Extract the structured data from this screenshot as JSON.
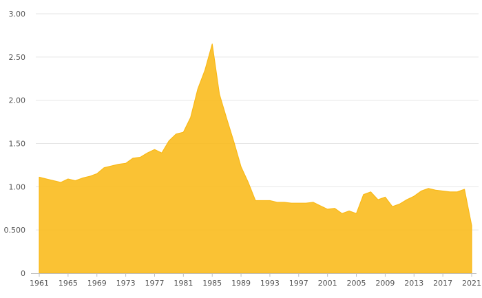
{
  "chart_data": {
    "type": "area",
    "title": "",
    "xlabel": "",
    "ylabel": "",
    "x": [
      1961,
      1962,
      1963,
      1964,
      1965,
      1966,
      1967,
      1968,
      1969,
      1970,
      1971,
      1972,
      1973,
      1974,
      1975,
      1976,
      1977,
      1978,
      1979,
      1980,
      1981,
      1982,
      1983,
      1984,
      1985,
      1986,
      1987,
      1988,
      1989,
      1990,
      1991,
      1992,
      1993,
      1994,
      1995,
      1996,
      1997,
      1998,
      1999,
      2000,
      2001,
      2002,
      2003,
      2004,
      2005,
      2006,
      2007,
      2008,
      2009,
      2010,
      2011,
      2012,
      2013,
      2014,
      2015,
      2016,
      2017,
      2018,
      2019,
      2020,
      2021
    ],
    "series": [
      {
        "values": [
          1.11,
          1.09,
          1.07,
          1.05,
          1.09,
          1.07,
          1.1,
          1.12,
          1.15,
          1.22,
          1.24,
          1.26,
          1.27,
          1.33,
          1.34,
          1.39,
          1.43,
          1.39,
          1.53,
          1.61,
          1.63,
          1.8,
          2.13,
          2.35,
          2.65,
          2.07,
          1.79,
          1.52,
          1.23,
          1.05,
          0.84,
          0.84,
          0.84,
          0.82,
          0.82,
          0.81,
          0.81,
          0.81,
          0.82,
          0.78,
          0.74,
          0.75,
          0.69,
          0.72,
          0.69,
          0.91,
          0.94,
          0.85,
          0.88,
          0.77,
          0.8,
          0.85,
          0.89,
          0.95,
          0.98,
          0.96,
          0.95,
          0.94,
          0.94,
          0.97,
          0.55
        ],
        "color": "#f9b918"
      }
    ],
    "ylim": [
      0,
      3.0
    ],
    "xlim": [
      1961,
      2021
    ],
    "y_ticks": [
      {
        "value": 0,
        "label": "0"
      },
      {
        "value": 0.5,
        "label": "0.500"
      },
      {
        "value": 1.0,
        "label": "1.00"
      },
      {
        "value": 1.5,
        "label": "1.50"
      },
      {
        "value": 2.0,
        "label": "2.00"
      },
      {
        "value": 2.5,
        "label": "2.50"
      },
      {
        "value": 3.0,
        "label": "3.00"
      }
    ],
    "x_ticks": [
      "1961",
      "1965",
      "1969",
      "1973",
      "1977",
      "1981",
      "1985",
      "1989",
      "1993",
      "1997",
      "2001",
      "2005",
      "2009",
      "2013",
      "2017",
      "2021"
    ],
    "grid": "horizontal",
    "legend": "none"
  }
}
